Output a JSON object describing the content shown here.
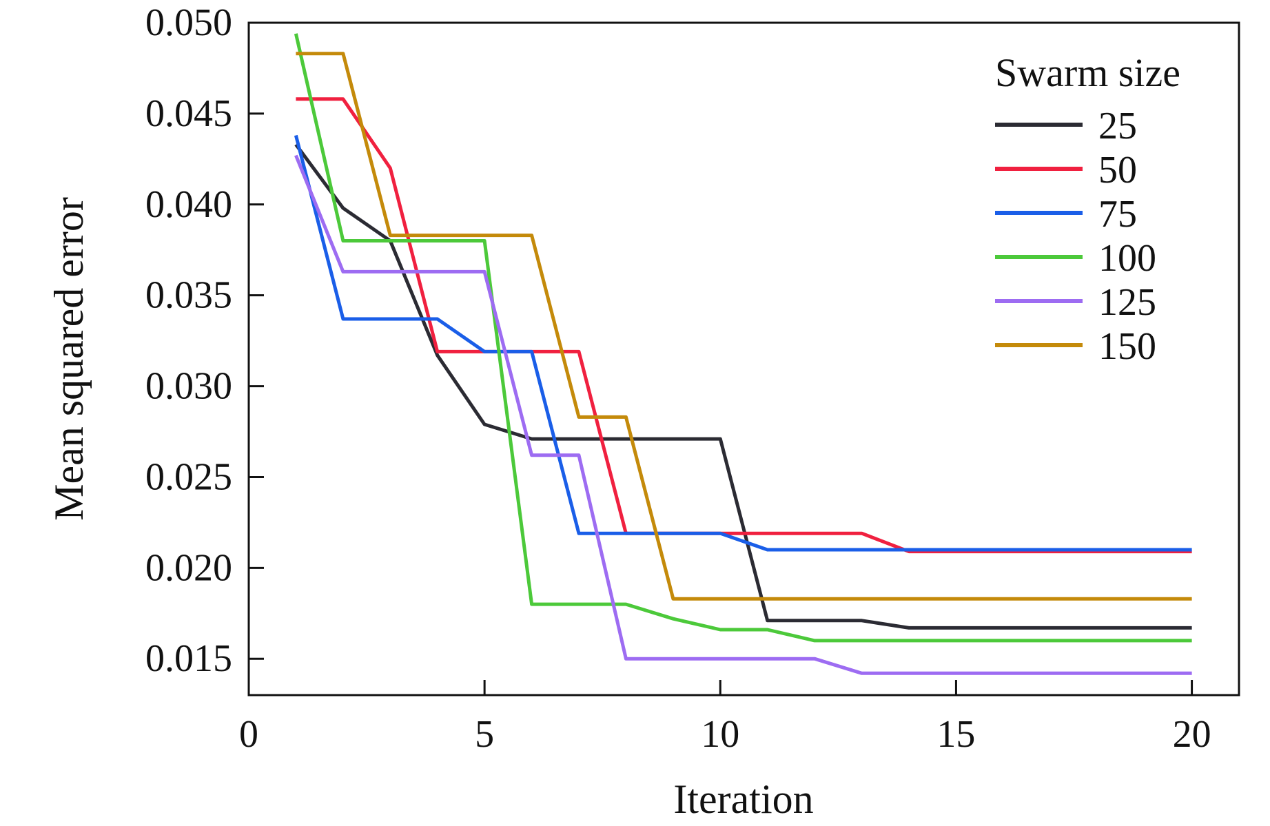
{
  "chart_data": {
    "type": "line",
    "title": "",
    "xlabel": "Iteration",
    "ylabel": "Mean squared error",
    "xlim": [
      0,
      21
    ],
    "ylim": [
      0.013,
      0.05
    ],
    "xticks": [
      0,
      5,
      10,
      15,
      20
    ],
    "xtick_labels": [
      "0",
      "5",
      "10",
      "15",
      "20"
    ],
    "yticks": [
      0.015,
      0.02,
      0.025,
      0.03,
      0.035,
      0.04,
      0.045,
      0.05
    ],
    "ytick_labels": [
      "0.015",
      "0.020",
      "0.025",
      "0.030",
      "0.035",
      "0.040",
      "0.045",
      "0.050"
    ],
    "grid": false,
    "legend": {
      "title": "Swarm size",
      "placement": "top-right"
    },
    "x": [
      1,
      2,
      3,
      4,
      5,
      6,
      7,
      8,
      9,
      10,
      11,
      12,
      13,
      14,
      15,
      16,
      17,
      18,
      19,
      20
    ],
    "series": [
      {
        "name": "25",
        "color": "#2b2b33",
        "values": [
          0.0433,
          0.0398,
          0.038,
          0.0317,
          0.0279,
          0.0271,
          0.0271,
          0.0271,
          0.0271,
          0.0271,
          0.0171,
          0.0171,
          0.0171,
          0.0167,
          0.0167,
          0.0167,
          0.0167,
          0.0167,
          0.0167,
          0.0167
        ]
      },
      {
        "name": "50",
        "color": "#f0203f",
        "values": [
          0.0458,
          0.0458,
          0.042,
          0.0319,
          0.0319,
          0.0319,
          0.0319,
          0.0219,
          0.0219,
          0.0219,
          0.0219,
          0.0219,
          0.0219,
          0.0209,
          0.0209,
          0.0209,
          0.0209,
          0.0209,
          0.0209,
          0.0209
        ]
      },
      {
        "name": "75",
        "color": "#1a5ee8",
        "values": [
          0.0438,
          0.0337,
          0.0337,
          0.0337,
          0.0319,
          0.0319,
          0.0219,
          0.0219,
          0.0219,
          0.0219,
          0.021,
          0.021,
          0.021,
          0.021,
          0.021,
          0.021,
          0.021,
          0.021,
          0.021,
          0.021
        ]
      },
      {
        "name": "100",
        "color": "#4cc93a",
        "values": [
          0.0494,
          0.038,
          0.038,
          0.038,
          0.038,
          0.018,
          0.018,
          0.018,
          0.0172,
          0.0166,
          0.0166,
          0.016,
          0.016,
          0.016,
          0.016,
          0.016,
          0.016,
          0.016,
          0.016,
          0.016
        ]
      },
      {
        "name": "125",
        "color": "#9d6cf2",
        "values": [
          0.0427,
          0.0363,
          0.0363,
          0.0363,
          0.0363,
          0.0262,
          0.0262,
          0.015,
          0.015,
          0.015,
          0.015,
          0.015,
          0.0142,
          0.0142,
          0.0142,
          0.0142,
          0.0142,
          0.0142,
          0.0142,
          0.0142
        ]
      },
      {
        "name": "150",
        "color": "#c48a0a",
        "values": [
          0.0483,
          0.0483,
          0.0383,
          0.0383,
          0.0383,
          0.0383,
          0.0283,
          0.0283,
          0.0183,
          0.0183,
          0.0183,
          0.0183,
          0.0183,
          0.0183,
          0.0183,
          0.0183,
          0.0183,
          0.0183,
          0.0183,
          0.0183
        ]
      }
    ]
  }
}
